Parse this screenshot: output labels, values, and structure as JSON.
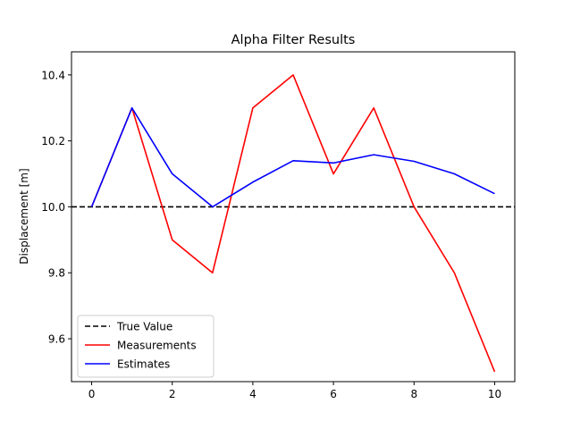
{
  "chart_data": {
    "type": "line",
    "title": "Alpha Filter Results",
    "xlabel": "",
    "ylabel": "Displacement [m]",
    "xlim": [
      -0.5,
      10.5
    ],
    "ylim": [
      9.47,
      10.47
    ],
    "xticks": [
      0,
      2,
      4,
      6,
      8,
      10
    ],
    "yticks": [
      9.6,
      9.8,
      10.0,
      10.2,
      10.4
    ],
    "xtick_labels": [
      "0",
      "2",
      "4",
      "6",
      "8",
      "10"
    ],
    "ytick_labels": [
      "9.6",
      "9.8",
      "10.0",
      "10.2",
      "10.4"
    ],
    "grid": false,
    "legend_position": "bottom-left",
    "series": [
      {
        "name": "True Value",
        "color": "#000000",
        "style": "dashed",
        "x": [
          -0.5,
          10.5
        ],
        "y": [
          10.0,
          10.0
        ]
      },
      {
        "name": "Measurements",
        "color": "#ff0000",
        "style": "solid",
        "x": [
          0,
          1,
          2,
          3,
          4,
          5,
          6,
          7,
          8,
          9,
          10
        ],
        "y": [
          10.0,
          10.3,
          9.9,
          9.8,
          10.3,
          10.4,
          10.1,
          10.3,
          10.0,
          9.8,
          9.5
        ]
      },
      {
        "name": "Estimates",
        "color": "#0000ff",
        "style": "solid",
        "x": [
          0,
          1,
          2,
          3,
          4,
          5,
          6,
          7,
          8,
          9,
          10
        ],
        "y": [
          10.0,
          10.3,
          10.1,
          10.0,
          10.075,
          10.14,
          10.133,
          10.158,
          10.138,
          10.1,
          10.04
        ]
      }
    ]
  }
}
